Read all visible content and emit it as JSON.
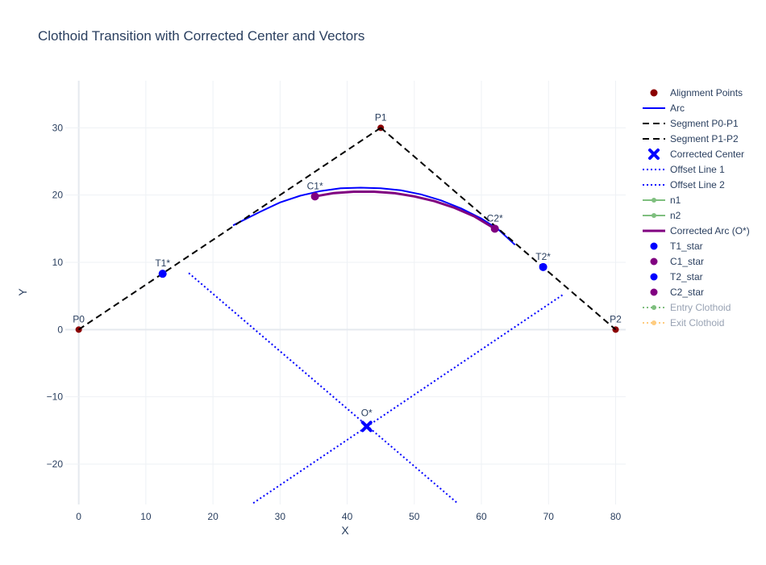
{
  "chart_data": {
    "type": "scatter",
    "title": "Clothoid Transition with Corrected Center and Vectors",
    "xlabel": "X",
    "ylabel": "Y",
    "xlim": [
      -2,
      81.5
    ],
    "ylim": [
      -26,
      37
    ],
    "xticks": [
      0,
      10,
      20,
      30,
      40,
      50,
      60,
      70,
      80
    ],
    "yticks": [
      -20,
      -10,
      0,
      10,
      20,
      30
    ],
    "grid": true,
    "legend_position": "right",
    "series": [
      {
        "name": "Alignment Points",
        "kind": "markers",
        "color": "#8b0000",
        "points": [
          [
            0,
            0
          ],
          [
            45,
            30
          ],
          [
            80,
            0
          ]
        ],
        "labels": [
          "P0",
          "P1",
          "P2"
        ]
      },
      {
        "name": "Arc",
        "kind": "line",
        "color": "#0000ff",
        "dash": "solid",
        "points": [
          [
            23,
            15.5
          ],
          [
            27,
            17.5
          ],
          [
            30,
            18.9
          ],
          [
            33,
            19.9
          ],
          [
            36,
            20.6
          ],
          [
            39,
            21
          ],
          [
            42,
            21.1
          ],
          [
            45,
            21
          ],
          [
            48,
            20.7
          ],
          [
            51,
            20.1
          ],
          [
            54,
            19.2
          ],
          [
            57,
            18
          ],
          [
            60,
            16.5
          ],
          [
            62.5,
            14.9
          ],
          [
            65,
            12.6
          ]
        ]
      },
      {
        "name": "Segment P0-P1",
        "kind": "line",
        "color": "#000000",
        "dash": "dash",
        "points": [
          [
            0,
            0
          ],
          [
            45,
            30
          ]
        ]
      },
      {
        "name": "Segment P1-P2",
        "kind": "line",
        "color": "#000000",
        "dash": "dash",
        "points": [
          [
            45,
            30
          ],
          [
            80,
            0
          ]
        ]
      },
      {
        "name": "Corrected Center",
        "kind": "xmarker",
        "color": "#0000ff",
        "points": [
          [
            42.9,
            -14.4
          ]
        ]
      },
      {
        "name": "Offset Line 1",
        "kind": "line",
        "color": "#0000ff",
        "dash": "dot",
        "points": [
          [
            16.4,
            8.4
          ],
          [
            56.3,
            -25.7
          ]
        ]
      },
      {
        "name": "Offset Line 2",
        "kind": "line",
        "color": "#0000ff",
        "dash": "dot",
        "points": [
          [
            26,
            -25.8
          ],
          [
            72.3,
            5.3
          ]
        ]
      },
      {
        "name": "n1",
        "kind": "lines+markers",
        "color": "#7fbf7f",
        "legend_only": true,
        "points": []
      },
      {
        "name": "n2",
        "kind": "lines+markers",
        "color": "#7fbf7f",
        "legend_only": true,
        "points": []
      },
      {
        "name": "Corrected Arc (O*)",
        "kind": "line",
        "color": "#800080",
        "dash": "solid",
        "width": 3,
        "points": [
          [
            35.2,
            19.8
          ],
          [
            38,
            20.3
          ],
          [
            41,
            20.5
          ],
          [
            44,
            20.5
          ],
          [
            47,
            20.3
          ],
          [
            50,
            19.8
          ],
          [
            53,
            19.1
          ],
          [
            56,
            18.1
          ],
          [
            59,
            16.8
          ],
          [
            62,
            15
          ]
        ]
      },
      {
        "name": "T1_star",
        "kind": "markers",
        "color": "#0000ff",
        "points": [
          [
            12.5,
            8.3
          ]
        ],
        "labels": [
          "T1*"
        ]
      },
      {
        "name": "C1_star",
        "kind": "markers",
        "color": "#800080",
        "points": [
          [
            35.2,
            19.8
          ]
        ],
        "labels": [
          "C1*"
        ]
      },
      {
        "name": "T2_star",
        "kind": "markers",
        "color": "#0000ff",
        "points": [
          [
            69.2,
            9.3
          ]
        ],
        "labels": [
          "T2*"
        ]
      },
      {
        "name": "C2_star",
        "kind": "markers",
        "color": "#800080",
        "points": [
          [
            62,
            15
          ]
        ],
        "labels": [
          "C2*"
        ]
      },
      {
        "name": "Entry Clothoid",
        "kind": "lines+markers",
        "color": "#7fbf7f",
        "dash": "dot",
        "legend_only": true,
        "muted": true,
        "points": []
      },
      {
        "name": "Exit Clothoid",
        "kind": "lines+markers",
        "color": "#ffcc80",
        "dash": "dot",
        "legend_only": true,
        "muted": true,
        "points": []
      }
    ],
    "annotations": [
      {
        "text": "O*",
        "x": 42.9,
        "y": -14.4
      }
    ]
  }
}
